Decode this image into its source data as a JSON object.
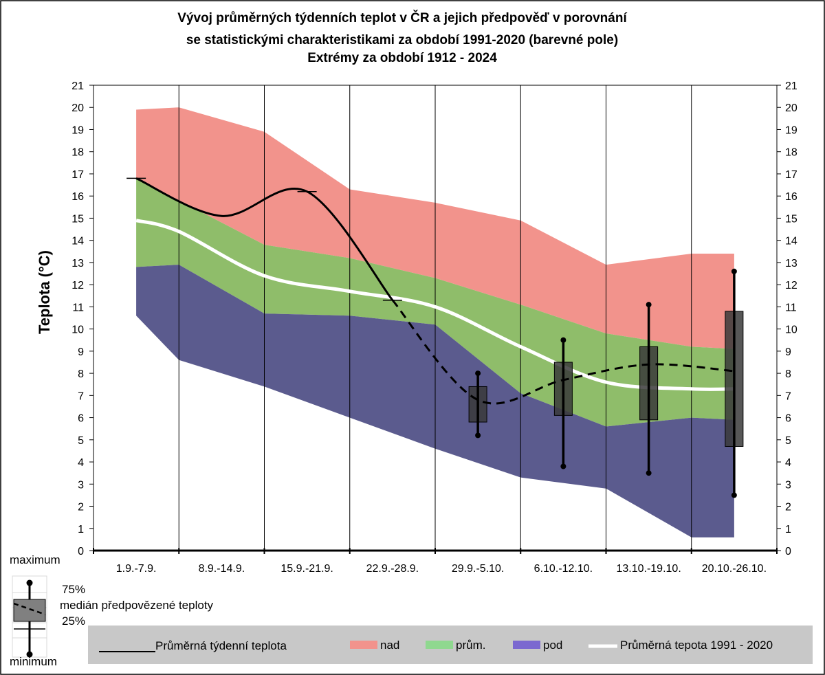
{
  "chart_data": {
    "type": "area",
    "title": [
      "Vývoj průměrných týdenních teplot v ČR a jejich předpověď v porovnání",
      "se statistickými charakteristikami za období 1991-2020 (barevné pole)",
      "Extrémy za období 1912 - 2024"
    ],
    "ylabel": "Teplota (°C)",
    "xlabel": "",
    "ylim": [
      0,
      21
    ],
    "y_ticks": [
      0,
      1,
      2,
      3,
      4,
      5,
      6,
      7,
      8,
      9,
      10,
      11,
      12,
      13,
      14,
      15,
      16,
      17,
      18,
      19,
      20,
      21
    ],
    "categories": [
      "1.9.-7.9.",
      "8.9.-14.9.",
      "15.9.-21.9.",
      "22.9.-28.9.",
      "29.9.-5.10.",
      "6.10.-12.10.",
      "13.10.-19.10.",
      "20.10.-26.10."
    ],
    "grid": "vertical",
    "bands": {
      "x": [
        0.5,
        1.0,
        2.0,
        3.0,
        4.0,
        5.0,
        6.0,
        7.0,
        7.5
      ],
      "max": [
        19.9,
        20.0,
        18.9,
        16.3,
        15.7,
        14.9,
        12.9,
        13.4,
        13.4
      ],
      "p75": [
        16.8,
        15.8,
        13.8,
        13.2,
        12.3,
        11.1,
        9.8,
        9.2,
        9.1
      ],
      "p25": [
        12.8,
        12.9,
        10.7,
        10.6,
        10.2,
        7.1,
        5.6,
        6.0,
        5.9
      ],
      "min": [
        10.6,
        8.6,
        7.4,
        6.0,
        4.6,
        3.3,
        2.8,
        0.6,
        0.6
      ],
      "mean": [
        14.9,
        14.4,
        12.4,
        11.7,
        11.0,
        9.2,
        7.6,
        7.3,
        7.3
      ],
      "colors": {
        "nad": "#f2938c",
        "prum": "#8fbd6a",
        "pod": "#5b5b8e",
        "mean": "#ffffff"
      }
    },
    "observed": {
      "x": [
        0.5,
        1.5,
        2.5,
        3.5
      ],
      "values": [
        16.8,
        15.1,
        16.2,
        11.3
      ]
    },
    "forecast": {
      "x": [
        3.5,
        4.5,
        5.5,
        6.5,
        7.5
      ],
      "median": [
        11.3,
        6.8,
        7.7,
        8.4,
        8.1
      ],
      "boxes": [
        {
          "x": 4.5,
          "min": 5.2,
          "q1": 5.8,
          "q3": 7.4,
          "max": 8.0
        },
        {
          "x": 5.5,
          "min": 3.8,
          "q1": 6.1,
          "q3": 8.5,
          "max": 9.5
        },
        {
          "x": 6.5,
          "min": 3.5,
          "q1": 5.9,
          "q3": 9.2,
          "max": 11.1
        },
        {
          "x": 7.5,
          "min": 2.5,
          "q1": 4.7,
          "q3": 10.8,
          "max": 12.6
        }
      ]
    },
    "legend": {
      "placement": "bottom",
      "observed": "Průměrná týdenní teplota",
      "nad": "nad",
      "prum": "prům.",
      "pod": "pod",
      "mean": "Průměrná tepota 1991 - 2020"
    },
    "box_key": {
      "maximum": "maximum",
      "p75": "75%",
      "median": "medián předpovězené teploty",
      "p25": "25%",
      "minimum": "minimum"
    }
  }
}
